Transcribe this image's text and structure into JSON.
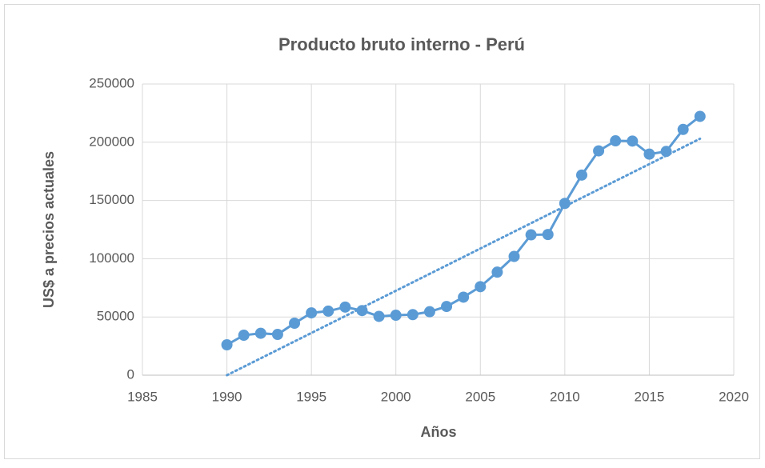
{
  "chart_data": {
    "type": "scatter",
    "title": "Producto bruto interno - Perú",
    "x_label": "Años",
    "y_label": "US$ a precios actuales",
    "x": [
      1990,
      1991,
      1992,
      1993,
      1994,
      1995,
      1996,
      1997,
      1998,
      1999,
      2000,
      2001,
      2002,
      2003,
      2004,
      2005,
      2006,
      2007,
      2008,
      2009,
      2010,
      2011,
      2012,
      2013,
      2014,
      2015,
      2016,
      2017,
      2018
    ],
    "values": [
      26100,
      34300,
      36000,
      35000,
      44600,
      53500,
      55000,
      58500,
      55500,
      50500,
      51500,
      52000,
      54500,
      59000,
      67000,
      76000,
      88500,
      102000,
      120500,
      120800,
      147500,
      171800,
      192600,
      201200,
      201000,
      189800,
      192100,
      211000,
      222200
    ],
    "color": "#5b9bd5",
    "trendline": {
      "x": [
        1990,
        2018
      ],
      "values": [
        0,
        203000
      ]
    },
    "xlim": [
      1985,
      2020
    ],
    "xticks": [
      1985,
      1990,
      1995,
      2000,
      2005,
      2010,
      2015,
      2020
    ],
    "ylim": [
      0,
      250000
    ],
    "yticks": [
      0,
      50000,
      100000,
      150000,
      200000,
      250000
    ],
    "grid": true
  }
}
